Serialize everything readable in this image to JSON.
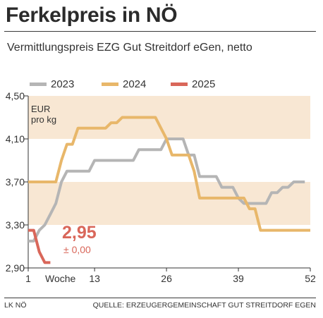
{
  "header": {
    "title": "Ferkelpreis in NÖ",
    "subtitle": "Vermittlungspreis EZG Gut Streitdorf eGen, netto"
  },
  "footer": {
    "left": "LK NÖ",
    "right": "QUELLE: ERZEUGERGEMEINSCHAFT GUT STREITDORF EGEN"
  },
  "annotations": {
    "unit_line1": "EUR",
    "unit_line2": "pro kg",
    "current_value": "2,95",
    "current_change": "± 0,00"
  },
  "colors": {
    "band": "#f8e7d3",
    "series_2023": "#b5b5b5",
    "series_2024": "#e8b76a",
    "series_2025": "#d9675a",
    "axis": "#333333"
  },
  "chart_data": {
    "type": "line",
    "title": "Ferkelpreis in NÖ",
    "subtitle": "Vermittlungspreis EZG Gut Streitdorf eGen, netto",
    "xlabel": "Woche",
    "ylabel": "EUR pro kg",
    "xlim": [
      1,
      52
    ],
    "ylim": [
      2.9,
      4.5
    ],
    "x_ticks": [
      1,
      13,
      26,
      39,
      52
    ],
    "x_tick_labels": [
      "1",
      "13",
      "26",
      "39",
      "52"
    ],
    "y_ticks": [
      2.9,
      3.3,
      3.7,
      4.1,
      4.5
    ],
    "y_tick_labels": [
      "2,90",
      "3,30",
      "3,70",
      "4,10",
      "4,50"
    ],
    "bands": [
      [
        3.3,
        3.7
      ],
      [
        4.1,
        4.5
      ]
    ],
    "legend_position": "top",
    "series": [
      {
        "name": "2023",
        "color": "#b5b5b5",
        "points": [
          [
            1,
            3.15
          ],
          [
            2,
            3.15
          ],
          [
            3,
            3.25
          ],
          [
            4,
            3.3
          ],
          [
            5,
            3.4
          ],
          [
            6,
            3.5
          ],
          [
            7,
            3.7
          ],
          [
            8,
            3.8
          ],
          [
            9,
            3.8
          ],
          [
            10,
            3.8
          ],
          [
            11,
            3.8
          ],
          [
            12,
            3.8
          ],
          [
            13,
            3.9
          ],
          [
            14,
            3.9
          ],
          [
            15,
            3.9
          ],
          [
            16,
            3.9
          ],
          [
            17,
            3.9
          ],
          [
            18,
            3.9
          ],
          [
            19,
            3.9
          ],
          [
            20,
            3.9
          ],
          [
            21,
            4.0
          ],
          [
            22,
            4.0
          ],
          [
            23,
            4.0
          ],
          [
            24,
            4.0
          ],
          [
            25,
            4.0
          ],
          [
            26,
            4.1
          ],
          [
            27,
            4.1
          ],
          [
            28,
            4.1
          ],
          [
            29,
            4.1
          ],
          [
            30,
            3.95
          ],
          [
            31,
            3.95
          ],
          [
            32,
            3.75
          ],
          [
            33,
            3.75
          ],
          [
            34,
            3.75
          ],
          [
            35,
            3.75
          ],
          [
            36,
            3.65
          ],
          [
            37,
            3.65
          ],
          [
            38,
            3.65
          ],
          [
            39,
            3.55
          ],
          [
            40,
            3.5
          ],
          [
            41,
            3.5
          ],
          [
            42,
            3.5
          ],
          [
            43,
            3.5
          ],
          [
            44,
            3.5
          ],
          [
            45,
            3.6
          ],
          [
            46,
            3.6
          ],
          [
            47,
            3.65
          ],
          [
            48,
            3.65
          ],
          [
            49,
            3.7
          ],
          [
            50,
            3.7
          ],
          [
            51,
            3.7
          ]
        ]
      },
      {
        "name": "2024",
        "color": "#e8b76a",
        "points": [
          [
            1,
            3.7
          ],
          [
            2,
            3.7
          ],
          [
            3,
            3.7
          ],
          [
            4,
            3.7
          ],
          [
            5,
            3.7
          ],
          [
            6,
            3.7
          ],
          [
            7,
            3.9
          ],
          [
            8,
            4.05
          ],
          [
            9,
            4.05
          ],
          [
            10,
            4.2
          ],
          [
            11,
            4.2
          ],
          [
            12,
            4.2
          ],
          [
            13,
            4.2
          ],
          [
            14,
            4.2
          ],
          [
            15,
            4.2
          ],
          [
            16,
            4.25
          ],
          [
            17,
            4.25
          ],
          [
            18,
            4.3
          ],
          [
            19,
            4.3
          ],
          [
            20,
            4.3
          ],
          [
            21,
            4.3
          ],
          [
            22,
            4.3
          ],
          [
            23,
            4.3
          ],
          [
            24,
            4.3
          ],
          [
            25,
            4.2
          ],
          [
            26,
            4.1
          ],
          [
            27,
            3.95
          ],
          [
            28,
            3.95
          ],
          [
            29,
            3.95
          ],
          [
            30,
            3.95
          ],
          [
            31,
            3.8
          ],
          [
            32,
            3.55
          ],
          [
            33,
            3.55
          ],
          [
            34,
            3.55
          ],
          [
            35,
            3.55
          ],
          [
            36,
            3.55
          ],
          [
            37,
            3.55
          ],
          [
            38,
            3.55
          ],
          [
            39,
            3.55
          ],
          [
            40,
            3.55
          ],
          [
            41,
            3.45
          ],
          [
            42,
            3.45
          ],
          [
            43,
            3.25
          ],
          [
            44,
            3.25
          ],
          [
            45,
            3.25
          ],
          [
            46,
            3.25
          ],
          [
            47,
            3.25
          ],
          [
            48,
            3.25
          ],
          [
            49,
            3.25
          ],
          [
            50,
            3.25
          ],
          [
            51,
            3.25
          ],
          [
            52,
            3.25
          ]
        ]
      },
      {
        "name": "2025",
        "color": "#d9675a",
        "points": [
          [
            1,
            3.25
          ],
          [
            2,
            3.25
          ],
          [
            3,
            3.05
          ],
          [
            4,
            2.95
          ],
          [
            5,
            2.95
          ]
        ]
      }
    ]
  }
}
